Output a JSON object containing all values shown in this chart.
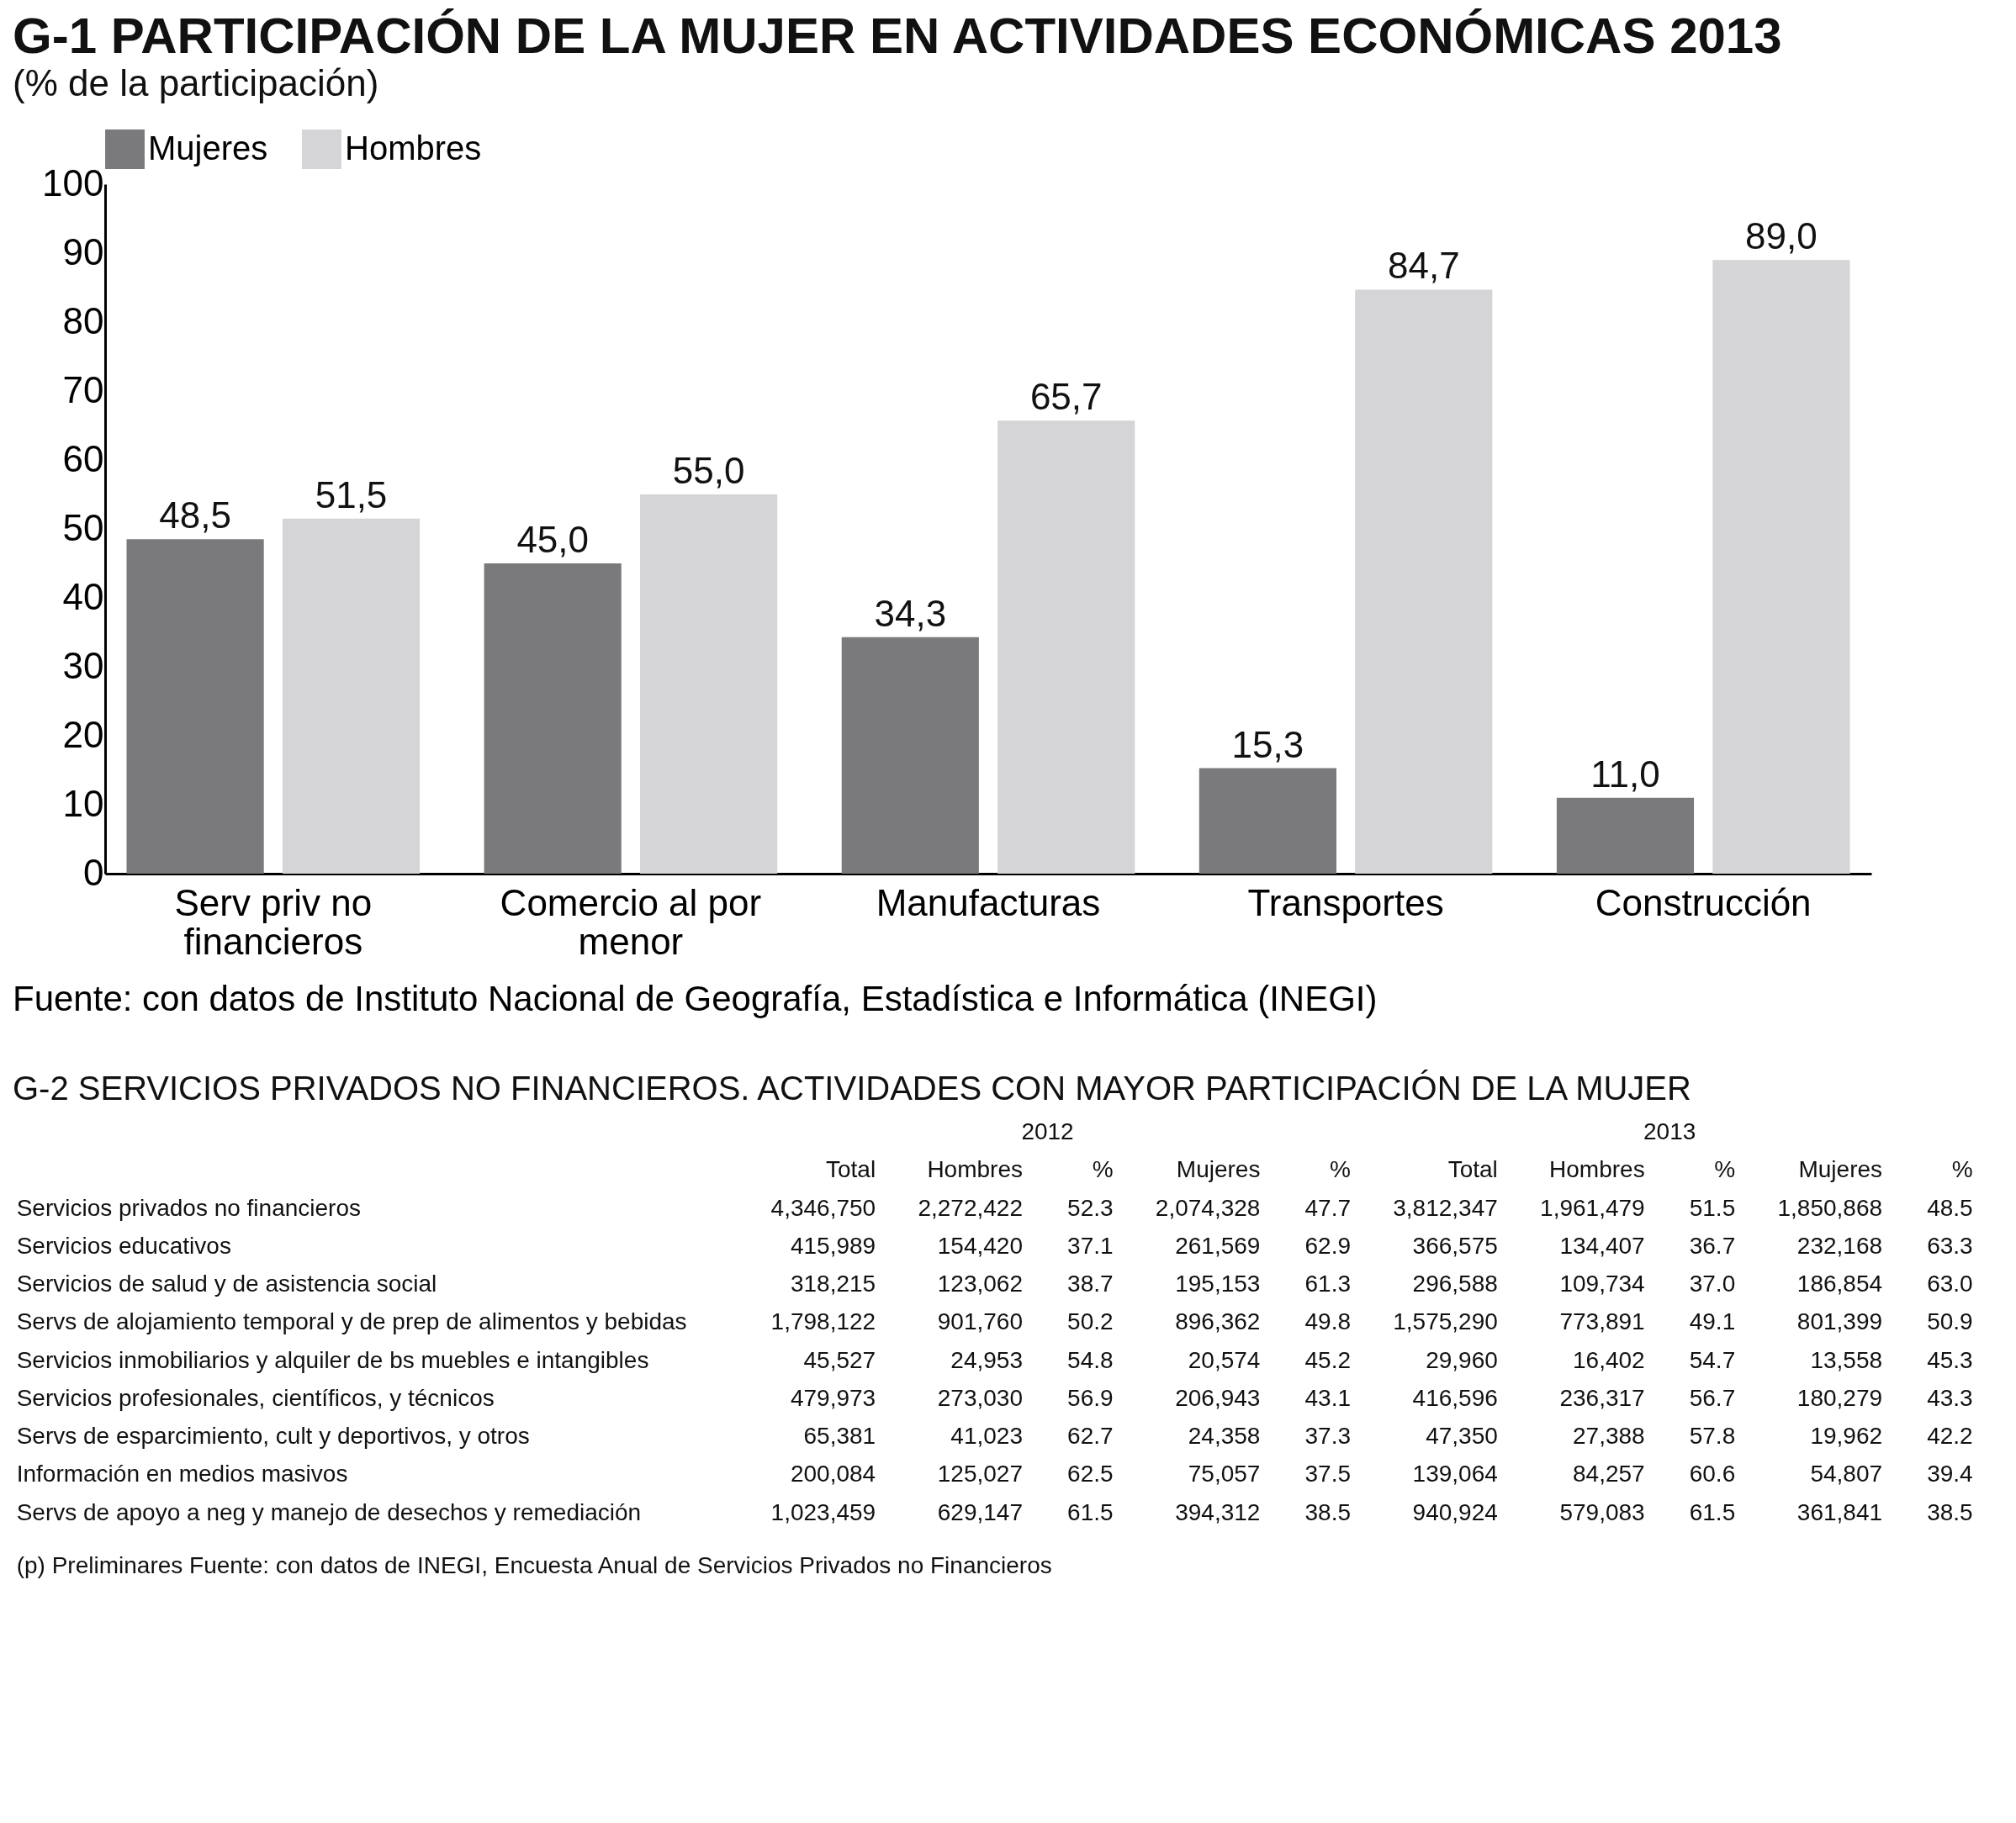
{
  "chart_data": [
    {
      "type": "bar",
      "title": "G-1 PARTICIPACIÓN DE LA MUJER EN ACTIVIDADES ECONÓMICAS 2013",
      "subtitle": "(% de la participación)",
      "categories": [
        "Serv priv no financieros",
        "Comercio al por menor",
        "Manufacturas",
        "Transportes",
        "Construcción"
      ],
      "series": [
        {
          "name": "Mujeres",
          "color": "#7a7a7c",
          "values": [
            48.5,
            45.0,
            34.3,
            15.3,
            11.0
          ],
          "value_labels": [
            "48,5",
            "45,0",
            "34,3",
            "15,3",
            "11,0"
          ]
        },
        {
          "name": "Hombres",
          "color": "#d5d5d7",
          "values": [
            51.5,
            55.0,
            65.7,
            84.7,
            89.0
          ],
          "value_labels": [
            "51,5",
            "55,0",
            "65,7",
            "84,7",
            "89,0"
          ]
        }
      ],
      "ylim": [
        0,
        100
      ],
      "yticks": [
        0,
        10,
        20,
        30,
        40,
        50,
        60,
        70,
        80,
        90,
        100
      ],
      "legend": "top",
      "annotations": [
        "Fuente: con datos de Instituto Nacional de Geografía, Estadística e Informática (INEGI)"
      ]
    },
    {
      "type": "other",
      "title": "G-2 SERVICIOS PRIVADOS NO FINANCIEROS. ACTIVIDADES CON MAYOR PARTICIPACIÓN DE LA MUJER",
      "categories": [
        "Total",
        "Hombres",
        "%",
        "Mujeres",
        "%",
        "Total",
        "Hombres",
        "%",
        "Mujeres",
        "%"
      ],
      "y_categories": [
        "Servicios privados no financieros",
        "Servicios educativos",
        "Servicios de salud y de asistencia social",
        "Servs de alojamiento temporal y de prep de alimentos y bebidas",
        "Servicios inmobiliarios y alquiler de bs muebles e intangibles",
        "Servicios profesionales, científicos, y técnicos",
        "Servs de esparcimiento, cult y deportivos, y otros",
        "Información en medios masivos",
        "Servs de apoyo a neg y manejo de desechos y remediación"
      ],
      "cell_labels": [
        [
          "4,346,750",
          "2,272,422",
          "52.3",
          "2,074,328",
          "47.7",
          "3,812,347",
          "1,961,479",
          "51.5",
          "1,850,868",
          "48.5"
        ],
        [
          "415,989",
          "154,420",
          "37.1",
          "261,569",
          "62.9",
          "366,575",
          "134,407",
          "36.7",
          "232,168",
          "63.3"
        ],
        [
          "318,215",
          "123,062",
          "38.7",
          "195,153",
          "61.3",
          "296,588",
          "109,734",
          "37.0",
          "186,854",
          "63.0"
        ],
        [
          "1,798,122",
          "901,760",
          "50.2",
          "896,362",
          "49.8",
          "1,575,290",
          "773,891",
          "49.1",
          "801,399",
          "50.9"
        ],
        [
          "45,527",
          "24,953",
          "54.8",
          "20,574",
          "45.2",
          "29,960",
          "16,402",
          "54.7",
          "13,558",
          "45.3"
        ],
        [
          "479,973",
          "273,030",
          "56.9",
          "206,943",
          "43.1",
          "416,596",
          "236,317",
          "56.7",
          "180,279",
          "43.3"
        ],
        [
          "65,381",
          "41,023",
          "62.7",
          "24,358",
          "37.3",
          "47,350",
          "27,388",
          "57.8",
          "19,962",
          "42.2"
        ],
        [
          "200,084",
          "125,027",
          "62.5",
          "75,057",
          "37.5",
          "139,064",
          "84,257",
          "60.6",
          "54,807",
          "39.4"
        ],
        [
          "1,023,459",
          "629,147",
          "61.5",
          "394,312",
          "38.5",
          "940,924",
          "579,083",
          "61.5",
          "361,841",
          "38.5"
        ]
      ],
      "annotations": [
        "2012",
        "2013",
        "(p) Preliminares   Fuente: con datos de INEGI, Encuesta Anual de Servicios Privados no Financieros"
      ]
    }
  ]
}
